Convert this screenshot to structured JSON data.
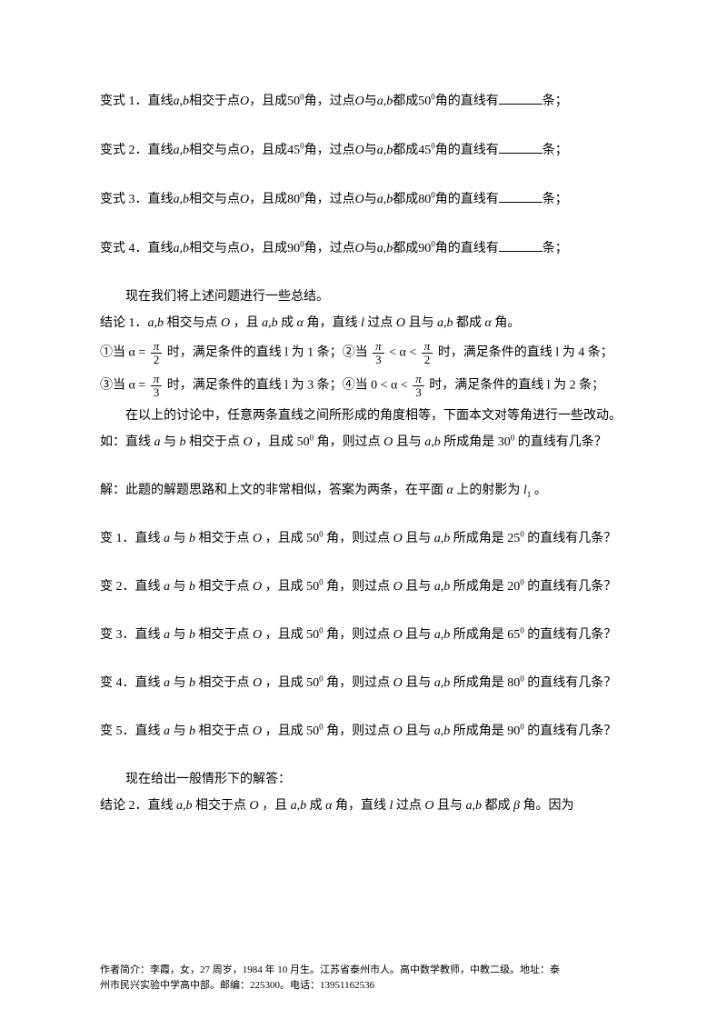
{
  "variants": [
    {
      "label": "变式 1．",
      "text_prefix": "直线",
      "ab": "a,b",
      "mid": "相交于点",
      "O": "O",
      "mid2": "，且成",
      "deg": "50",
      "sup": "0",
      "mid3": "角，过点",
      "O2": "O",
      "mid4": "与",
      "ab2": "a,b",
      "mid5": "都成",
      "deg2": "50",
      "sup2": "0",
      "mid6": "角的直线有",
      "suffix": "条；"
    },
    {
      "label": "变式 2．",
      "text_prefix": "直线",
      "ab": "a,b",
      "mid": "相交与点",
      "O": "O",
      "mid2": "，且成",
      "deg": "45",
      "sup": "0",
      "mid3": "角，过点",
      "O2": "O",
      "mid4": "与",
      "ab2": "a,b",
      "mid5": "都成",
      "deg2": "45",
      "sup2": "0",
      "mid6": "角的直线有",
      "suffix": "条；"
    },
    {
      "label": "变式 3．",
      "text_prefix": "直线",
      "ab": "a,b",
      "mid": "相交与点",
      "O": "O",
      "mid2": "，且成",
      "deg": "80",
      "sup": "0",
      "mid3": "角，过点",
      "O2": "O",
      "mid4": "与",
      "ab2": "a,b",
      "mid5": "都成",
      "deg2": "80",
      "sup2": "0",
      "mid6": "角的直线有",
      "suffix": "条；"
    },
    {
      "label": "变式 4．",
      "text_prefix": "直线",
      "ab": "a,b",
      "mid": "相交与点",
      "O": "O",
      "mid2": "，且成",
      "deg": "90",
      "sup": "0",
      "mid3": "角，过点",
      "O2": "O",
      "mid4": "与",
      "ab2": "a,b",
      "mid5": "都成",
      "deg2": "90",
      "sup2": "0",
      "mid6": "角的直线有",
      "suffix": "条；"
    }
  ],
  "summary_intro": "现在我们将上述问题进行一些总结。",
  "conclusion1_label": "结论 1．",
  "conclusion1_text": "直线 a,b 相交与点 O ，且 a,b 成 α 角，直线 l 过点 O 且与 a,b 都成 α 角。",
  "cases_line1_p1": "①当 α = ",
  "pi": "π",
  "two": "2",
  "three": "3",
  "cases_line1_p2": " 时，满足条件的直线 l 为 1 条；②当 ",
  "cases_line1_p3": " < α < ",
  "cases_line1_p4": " 时，满足条件的直线 l 为 4 条；",
  "cases_line2_p1": "③当 α = ",
  "cases_line2_p2": " 时，满足条件的直线 l 为 3 条；④当 0 < α < ",
  "cases_line2_p3": " 时，满足条件的直线 l 为 2 条；",
  "discussion": "在以上的讨论中，任意两条直线之间所形成的角度相等，下面本文对等角进行一些改动。",
  "example_q": "如：直线 a 与 b 相交于点 O ，且成 50⁰ 角，则过点 O 且与 a,b 所成角是 30⁰ 的直线有几条？",
  "example_a": "解：此题的解题思路和上文的非常相似，答案为两条，在平面 α 上的射影为 l₁ 。",
  "sub_variants": [
    {
      "label": "变 1．",
      "text": "直线 a 与 b 相交于点 O ，且成 50⁰ 角，则过点 O 且与 a,b 所成角是 25⁰ 的直线有几条？"
    },
    {
      "label": "变 2．",
      "text": "直线 a 与 b 相交于点 O ，且成 50⁰ 角，则过点 O 且与 a,b 所成角是 20⁰ 的直线有几条？"
    },
    {
      "label": "变 3．",
      "text": "直线 a 与 b 相交于点 O ，且成 50⁰ 角，则过点 O 且与 a,b 所成角是 65⁰ 的直线有几条？"
    },
    {
      "label": "变 4．",
      "text": "直线 a 与 b 相交于点 O ，且成 50⁰ 角，则过点 O 且与 a,b 所成角是 80⁰ 的直线有几条？"
    },
    {
      "label": "变 5．",
      "text": "直线 a 与 b 相交于点 O ，且成 50⁰ 角，则过点 O 且与 a,b 所成角是 90⁰ 的直线有几条？"
    }
  ],
  "general_intro": "现在给出一般情形下的解答：",
  "conclusion2_label": "结论 2．",
  "conclusion2_text": "直线 a,b 相交于点 O ，且 a,b 成 α 角，直线 l 过点 O 且与 a,b 都成 β 角。因为",
  "footer_line1": "作者简介：李霞，女，27 周岁，1984 年 10 月生。江苏省泰州市人。高中数学教师，中教二级。地址：泰",
  "footer_line2": "州市民兴实验中学高中部。邮编：225300。电话：13951162536"
}
